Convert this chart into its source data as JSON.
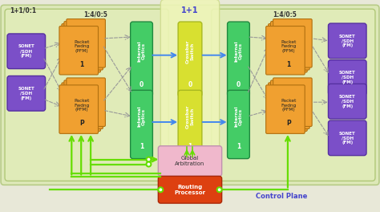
{
  "fig_width": 4.74,
  "fig_height": 2.64,
  "dpi": 100,
  "bg_main": "#dde8b8",
  "bg_left": "#e0ebb8",
  "bg_right": "#e0ebb8",
  "bg_center_col": "#eef5c8",
  "purple": "#7b4fc8",
  "orange": "#f0a030",
  "green_optics": "#44cc66",
  "yellow_cross": "#d8e030",
  "pink_arb": "#f0b8cc",
  "red_routing": "#dd4010",
  "blue_arrow": "#4488ee",
  "green_arrow": "#66dd00",
  "gray_arrow": "#999999",
  "title_blue": "#4444cc",
  "label_11": "1+1",
  "label_left_top": "1+1/0:1",
  "label_ratio_left": "1:4/0:5",
  "label_ratio_right": "1:4/0:5",
  "text_control": "Control Plane"
}
